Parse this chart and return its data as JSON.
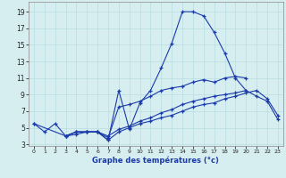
{
  "xlabel": "Graphe des températures (°c)",
  "background_color": "#d7eef0",
  "line_color": "#1a3aaa",
  "grid_color": "#b8dde0",
  "xlim": [
    -0.5,
    23.5
  ],
  "ylim": [
    2.8,
    20.2
  ],
  "yticks": [
    3,
    5,
    7,
    9,
    11,
    13,
    15,
    17,
    19
  ],
  "xticks": [
    0,
    1,
    2,
    3,
    4,
    5,
    6,
    7,
    8,
    9,
    10,
    11,
    12,
    13,
    14,
    15,
    16,
    17,
    18,
    19,
    20,
    21,
    22,
    23
  ],
  "series": [
    {
      "x": [
        0,
        1,
        2,
        3,
        4,
        5,
        6,
        7,
        8,
        9,
        10,
        11,
        12,
        13,
        14,
        15,
        16,
        17,
        18,
        19,
        20
      ],
      "y": [
        5.5,
        4.5,
        5.5,
        4.0,
        4.5,
        4.5,
        4.5,
        3.5,
        9.5,
        4.8,
        8.0,
        9.5,
        12.2,
        15.2,
        19.0,
        19.0,
        18.5,
        16.5,
        14.0,
        11.0,
        9.5
      ]
    },
    {
      "x": [
        0,
        3,
        4,
        5,
        6,
        7,
        8,
        9,
        10,
        11,
        12,
        13,
        14,
        15,
        16,
        17,
        18,
        19,
        20,
        21,
        22,
        23
      ],
      "y": [
        5.5,
        4.0,
        4.5,
        4.5,
        4.5,
        4.0,
        4.8,
        5.2,
        5.8,
        6.2,
        6.8,
        7.2,
        7.8,
        8.2,
        8.5,
        8.8,
        9.0,
        9.2,
        9.5,
        8.8,
        8.2,
        6.0
      ]
    },
    {
      "x": [
        3,
        4,
        5,
        6,
        7,
        8,
        9,
        10,
        11,
        12,
        13,
        14,
        15,
        16,
        17,
        18,
        19,
        20
      ],
      "y": [
        4.0,
        4.5,
        4.5,
        4.5,
        3.8,
        7.5,
        7.8,
        8.2,
        8.8,
        9.5,
        9.8,
        10.0,
        10.5,
        10.8,
        10.5,
        11.0,
        11.2,
        11.0
      ]
    },
    {
      "x": [
        3,
        4,
        5,
        6,
        7,
        8,
        9,
        10,
        11,
        12,
        13,
        14,
        15,
        16,
        17,
        18,
        19,
        20,
        21,
        22,
        23
      ],
      "y": [
        4.0,
        4.2,
        4.5,
        4.5,
        3.5,
        4.5,
        5.0,
        5.5,
        5.8,
        6.2,
        6.5,
        7.0,
        7.5,
        7.8,
        8.0,
        8.5,
        8.8,
        9.2,
        9.5,
        8.5,
        6.5
      ]
    }
  ]
}
